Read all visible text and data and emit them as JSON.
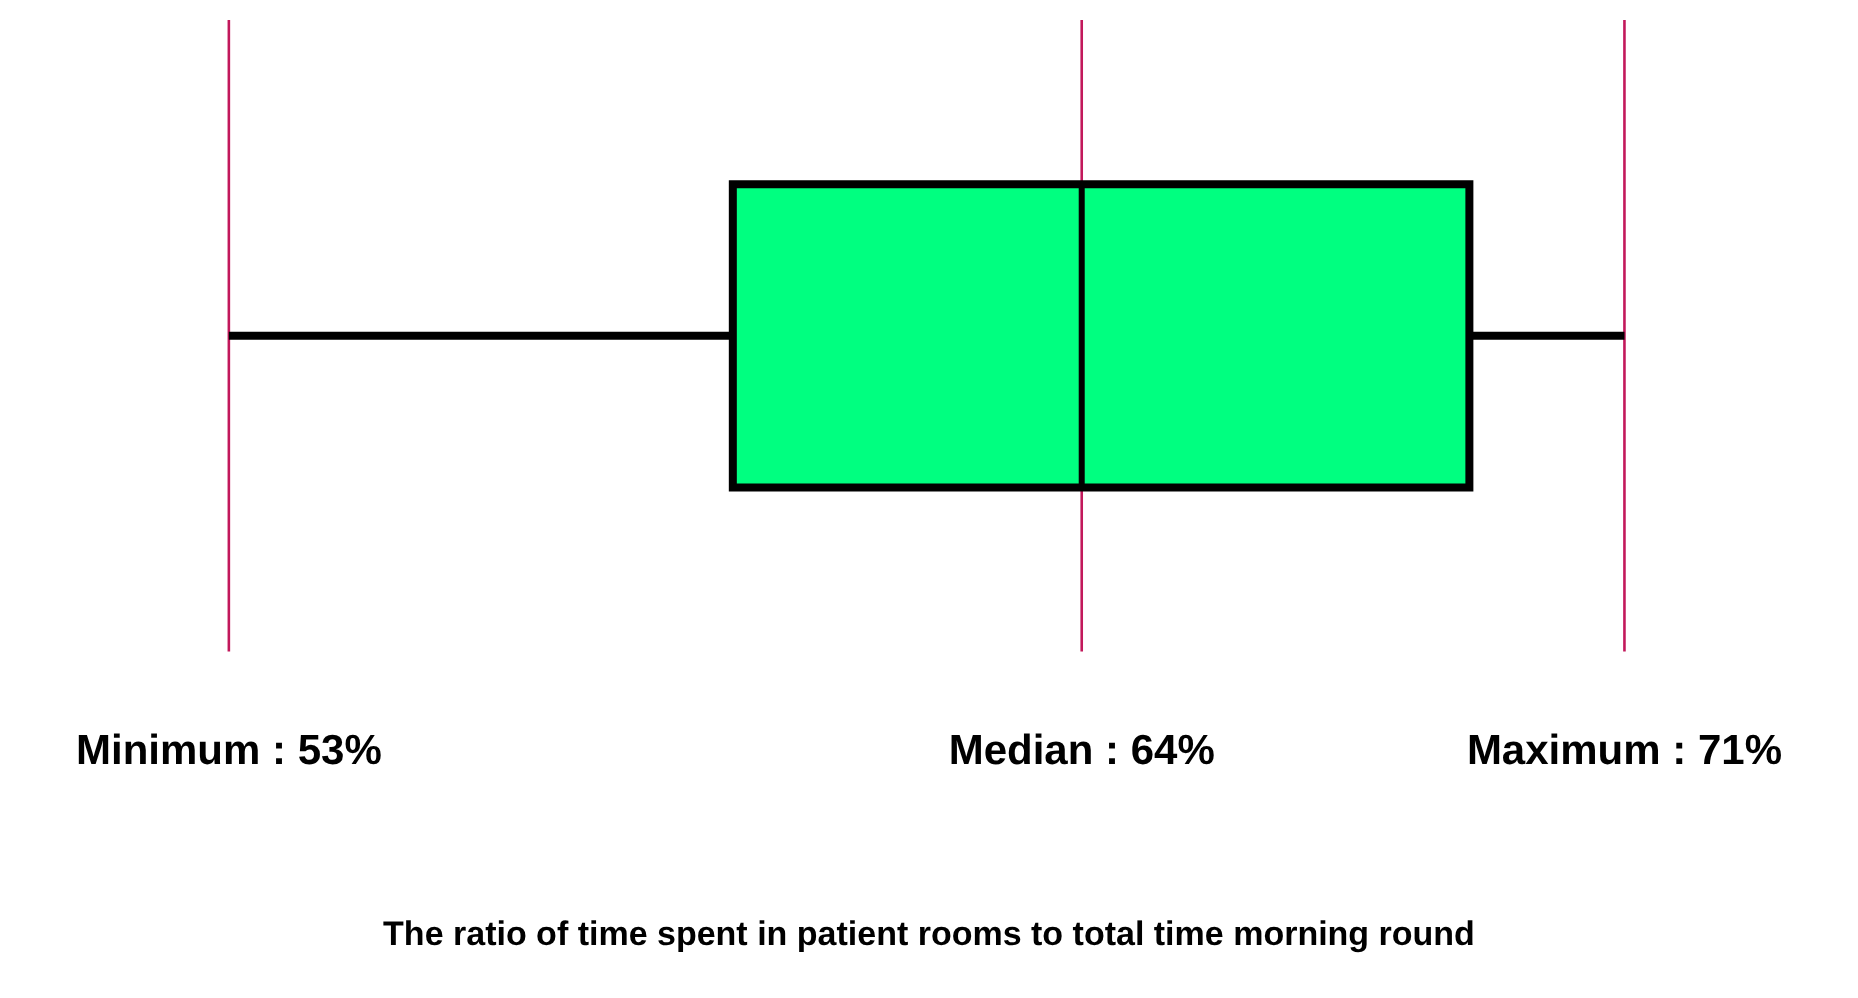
{
  "chart_data": {
    "type": "box",
    "orientation": "horizontal",
    "title": "The ratio of time spent in patient rooms to total time morning round",
    "color": "#00ff80",
    "boxes": [
      {
        "low": 53,
        "q1": 59.5,
        "median": 64,
        "q3": 69,
        "high": 71
      }
    ],
    "xlim": [
      53,
      71
    ],
    "xticks": [
      {
        "value": 53,
        "label": "Minimum : 53%"
      },
      {
        "value": 64,
        "label": "Median : 64%"
      },
      {
        "value": 71,
        "label": "Maximum : 71%"
      }
    ],
    "ref_lines": [
      {
        "axis": "x",
        "value": 53,
        "color": "#c2185b"
      },
      {
        "axis": "x",
        "value": 64,
        "color": "#c2185b"
      },
      {
        "axis": "x",
        "value": 71,
        "color": "#c2185b"
      }
    ],
    "legend": false
  }
}
